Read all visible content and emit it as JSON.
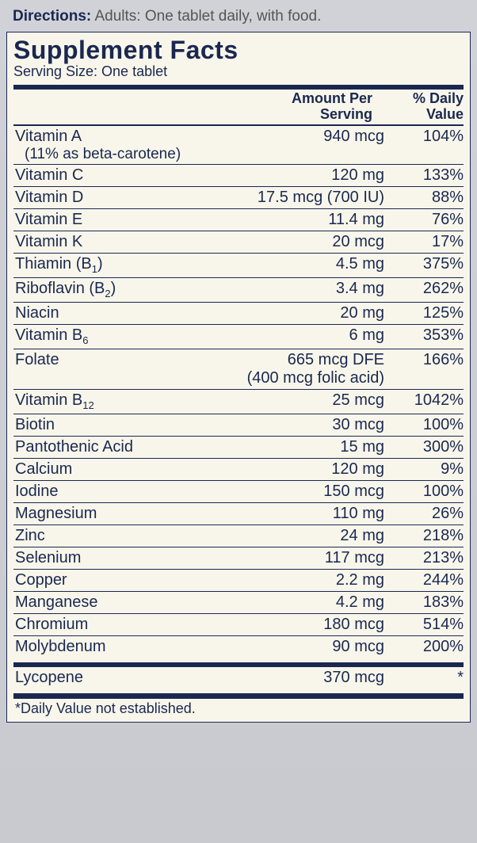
{
  "directions": {
    "label": "Directions:",
    "text": "Adults: One tablet daily, with food."
  },
  "panel": {
    "title": "Supplement Facts",
    "serving": "Serving Size: One tablet",
    "header_amount_l1": "Amount Per",
    "header_amount_l2": "Serving",
    "header_dv_l1": "% Daily",
    "header_dv_l2": "Value",
    "rows": [
      {
        "name": "Vitamin A",
        "name_sub": "(11% as beta-carotene)",
        "amt": "940 mcg",
        "dv": "104%"
      },
      {
        "name": "Vitamin C",
        "amt": "120 mg",
        "dv": "133%"
      },
      {
        "name": "Vitamin D",
        "amt": "17.5 mcg (700 IU)",
        "dv": "88%"
      },
      {
        "name": "Vitamin E",
        "amt": "11.4 mg",
        "dv": "76%"
      },
      {
        "name": "Vitamin K",
        "amt": "20 mcg",
        "dv": "17%"
      },
      {
        "name": "Thiamin (B",
        "name_sub_inline": "1",
        "name_tail": ")",
        "amt": "4.5 mg",
        "dv": "375%"
      },
      {
        "name": "Riboflavin (B",
        "name_sub_inline": "2",
        "name_tail": ")",
        "amt": "3.4 mg",
        "dv": "262%"
      },
      {
        "name": "Niacin",
        "amt": "20 mg",
        "dv": "125%"
      },
      {
        "name": "Vitamin B",
        "name_sub_inline": "6",
        "amt": "6 mg",
        "dv": "353%"
      },
      {
        "name": "Folate",
        "amt": "665 mcg DFE",
        "amt_sub": "(400 mcg folic acid)",
        "dv": "166%"
      },
      {
        "name": "Vitamin B",
        "name_sub_inline": "12",
        "amt": "25 mcg",
        "dv": "1042%"
      },
      {
        "name": "Biotin",
        "amt": "30 mcg",
        "dv": "100%"
      },
      {
        "name": "Pantothenic Acid",
        "amt": "15 mg",
        "dv": "300%"
      },
      {
        "name": "Calcium",
        "amt": "120 mg",
        "dv": "9%"
      },
      {
        "name": "Iodine",
        "amt": "150 mcg",
        "dv": "100%"
      },
      {
        "name": "Magnesium",
        "amt": "110 mg",
        "dv": "26%"
      },
      {
        "name": "Zinc",
        "amt": "24 mg",
        "dv": "218%"
      },
      {
        "name": "Selenium",
        "amt": "117 mcg",
        "dv": "213%"
      },
      {
        "name": "Copper",
        "amt": "2.2 mg",
        "dv": "244%"
      },
      {
        "name": "Manganese",
        "amt": "4.2 mg",
        "dv": "183%"
      },
      {
        "name": "Chromium",
        "amt": "180 mcg",
        "dv": "514%"
      },
      {
        "name": "Molybdenum",
        "amt": "90 mcg",
        "dv": "200%"
      }
    ],
    "rows2": [
      {
        "name": "Lycopene",
        "amt": "370 mcg",
        "dv": "*"
      }
    ],
    "footnote": "*Daily Value not established."
  },
  "style": {
    "rule_color": "#1a2850",
    "panel_bg": "#f8f6eb",
    "page_bg": "#d0d2d8",
    "title_fontsize": 32,
    "row_fontsize": 20
  }
}
